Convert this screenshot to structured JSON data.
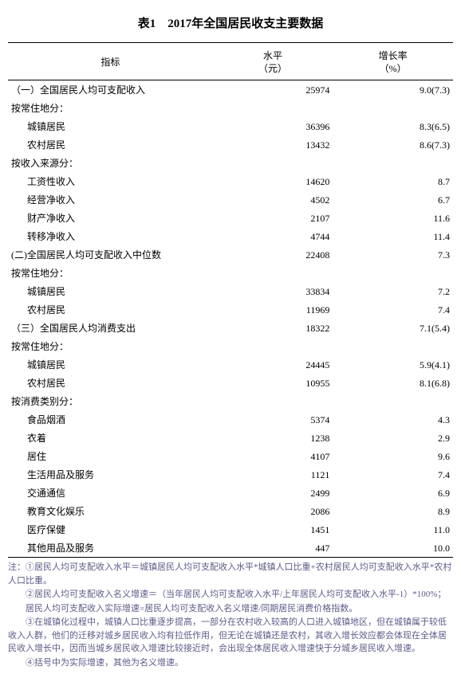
{
  "title": "表1　2017年全国居民收支主要数据",
  "columns": {
    "indicator": "指标",
    "level": "水平\n（元）",
    "growth": "增长率\n（%）"
  },
  "rows": [
    {
      "label": "（一）全国居民人均可支配收入",
      "indent": 0,
      "level": "25974",
      "growth": "9.0(7.3)"
    },
    {
      "label": "按常住地分：",
      "indent": 0,
      "level": "",
      "growth": ""
    },
    {
      "label": "城镇居民",
      "indent": 1,
      "level": "36396",
      "growth": "8.3(6.5)"
    },
    {
      "label": "农村居民",
      "indent": 1,
      "level": "13432",
      "growth": "8.6(7.3)"
    },
    {
      "label": "按收入来源分：",
      "indent": 0,
      "level": "",
      "growth": ""
    },
    {
      "label": "工资性收入",
      "indent": 1,
      "level": "14620",
      "growth": "8.7"
    },
    {
      "label": "经营净收入",
      "indent": 1,
      "level": "4502",
      "growth": "6.7"
    },
    {
      "label": "财产净收入",
      "indent": 1,
      "level": "2107",
      "growth": "11.6"
    },
    {
      "label": "转移净收入",
      "indent": 1,
      "level": "4744",
      "growth": "11.4"
    },
    {
      "label": "(二)全国居民人均可支配收入中位数",
      "indent": 0,
      "level": "22408",
      "growth": "7.3"
    },
    {
      "label": "按常住地分：",
      "indent": 0,
      "level": "",
      "growth": ""
    },
    {
      "label": "城镇居民",
      "indent": 1,
      "level": "33834",
      "growth": "7.2"
    },
    {
      "label": "农村居民",
      "indent": 1,
      "level": "11969",
      "growth": "7.4"
    },
    {
      "label": "（三）全国居民人均消费支出",
      "indent": 0,
      "level": "18322",
      "growth": "7.1(5.4)"
    },
    {
      "label": "按常住地分：",
      "indent": 0,
      "level": "",
      "growth": ""
    },
    {
      "label": "城镇居民",
      "indent": 1,
      "level": "24445",
      "growth": "5.9(4.1)"
    },
    {
      "label": "农村居民",
      "indent": 1,
      "level": "10955",
      "growth": "8.1(6.8)"
    },
    {
      "label": "按消费类别分：",
      "indent": 0,
      "level": "",
      "growth": ""
    },
    {
      "label": "食品烟酒",
      "indent": 1,
      "level": "5374",
      "growth": "4.3"
    },
    {
      "label": "衣着",
      "indent": 1,
      "level": "1238",
      "growth": "2.9"
    },
    {
      "label": "居住",
      "indent": 1,
      "level": "4107",
      "growth": "9.6"
    },
    {
      "label": "生活用品及服务",
      "indent": 1,
      "level": "1121",
      "growth": "7.4"
    },
    {
      "label": "交通通信",
      "indent": 1,
      "level": "2499",
      "growth": "6.9"
    },
    {
      "label": "教育文化娱乐",
      "indent": 1,
      "level": "2086",
      "growth": "8.9"
    },
    {
      "label": "医疗保健",
      "indent": 1,
      "level": "1451",
      "growth": "11.0"
    },
    {
      "label": "其他用品及服务",
      "indent": 1,
      "level": "447",
      "growth": "10.0"
    }
  ],
  "notes": [
    "注：①居民人均可支配收入水平＝城镇居民人均可支配收入水平*城镇人口比重+农村居民人均可支配收入水平*农村人口比重。",
    "　　②居民人均可支配收入名义增速＝（当年居民人均可支配收入水平/上年居民人均可支配收入水平-1）*100%；",
    "　　居民人均可支配收入实际增速=居民人均可支配收入名义增速/同期居民消费价格指数。",
    "　　③在城镇化过程中，城镇人口比重逐步提高，一部分在农村收入较高的人口进入城镇地区，但在城镇属于较低收入人群，他们的迁移对城乡居民收入均有拉低作用，但无论在城镇还是农村，其收入增长效应都会体现在全体居民收入增长中，因而当城乡居民收入增速比较接近时，会出现全体居民收入增速快于分城乡居民收入增速。",
    "　　④括号中为实际增速，其他为名义增速。"
  ]
}
